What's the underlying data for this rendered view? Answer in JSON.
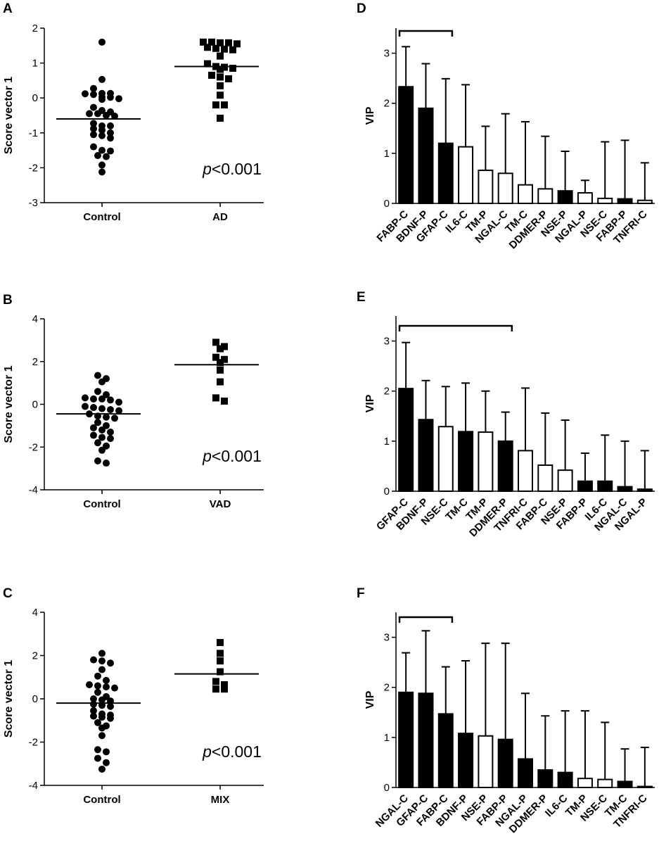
{
  "chart_data": [
    {
      "panel": "A",
      "type": "scatter",
      "ylabel": "Score vector 1",
      "ylim": [
        -3,
        2
      ],
      "yticks": [
        -3,
        -2,
        -1,
        0,
        1,
        2
      ],
      "categories": [
        "Control",
        "AD"
      ],
      "p_prefix": "p",
      "p_text": "<0.001",
      "groups": [
        {
          "name": "Control",
          "marker": "circle",
          "mean": -0.6,
          "values": [
            1.6,
            0.53,
            0.27,
            0.13,
            0.1,
            0.12,
            0.13,
            0.03,
            0.02,
            -0.02,
            -0.04,
            -0.27,
            -0.36,
            -0.4,
            -0.45,
            -0.45,
            -0.5,
            -0.52,
            -0.73,
            -0.8,
            -0.8,
            -0.88,
            -0.92,
            -1.0,
            -1.05,
            -1.08,
            -1.15,
            -1.4,
            -1.5,
            -1.52,
            -1.65,
            -1.68,
            -1.92,
            -2.12
          ]
        },
        {
          "name": "AD",
          "marker": "square",
          "mean": 0.9,
          "values": [
            1.6,
            1.6,
            1.58,
            1.55,
            1.58,
            1.45,
            1.42,
            1.4,
            1.38,
            1.2,
            0.98,
            0.9,
            0.88,
            0.85,
            0.82,
            0.65,
            0.6,
            0.55,
            0.35,
            0.08,
            -0.2,
            -0.2,
            -0.58
          ]
        }
      ]
    },
    {
      "panel": "B",
      "type": "scatter",
      "ylabel": "Score vector 1",
      "ylim": [
        -4,
        4
      ],
      "yticks": [
        -4,
        -2,
        0,
        2,
        4
      ],
      "categories": [
        "Control",
        "VAD"
      ],
      "p_prefix": "p",
      "p_text": "<0.001",
      "groups": [
        {
          "name": "Control",
          "marker": "circle",
          "mean": -0.45,
          "values": [
            1.35,
            1.2,
            1.05,
            0.6,
            0.45,
            0.3,
            0.25,
            0.2,
            0.25,
            0.1,
            -0.1,
            -0.15,
            -0.2,
            -0.25,
            -0.3,
            -0.45,
            -0.55,
            -0.6,
            -0.65,
            -0.85,
            -1.0,
            -1.1,
            -1.2,
            -1.3,
            -1.45,
            -1.55,
            -1.6,
            -1.8,
            -1.95,
            -2.15,
            -2.65,
            -2.75
          ]
        },
        {
          "name": "VAD",
          "marker": "square",
          "mean": 1.85,
          "values": [
            2.9,
            2.6,
            2.7,
            2.2,
            2.1,
            1.95,
            1.6,
            1.05,
            0.3,
            0.15
          ]
        }
      ]
    },
    {
      "panel": "C",
      "type": "scatter",
      "ylabel": "Score vector 1",
      "ylim": [
        -4,
        4
      ],
      "yticks": [
        -4,
        -2,
        0,
        2,
        4
      ],
      "categories": [
        "Control",
        "MIX"
      ],
      "p_prefix": "p",
      "p_text": "<0.001",
      "groups": [
        {
          "name": "Control",
          "marker": "circle",
          "mean": -0.2,
          "values": [
            2.1,
            1.8,
            1.75,
            1.65,
            1.35,
            1.05,
            0.85,
            0.65,
            0.6,
            0.55,
            0.5,
            0.3,
            0.1,
            0.0,
            -0.05,
            -0.1,
            -0.25,
            -0.3,
            -0.35,
            -0.55,
            -0.7,
            -0.75,
            -0.8,
            -0.85,
            -0.9,
            -1.1,
            -1.25,
            -1.35,
            -1.7,
            -2.35,
            -2.45,
            -2.75,
            -2.95,
            -3.25
          ]
        },
        {
          "name": "MIX",
          "marker": "square",
          "mean": 1.15,
          "values": [
            2.6,
            2.1,
            1.75,
            1.25,
            0.8,
            0.65,
            0.45,
            0.45
          ]
        }
      ]
    },
    {
      "panel": "D",
      "type": "bar",
      "ylabel": "VIP",
      "ylim": [
        0,
        3.5
      ],
      "yticks": [
        0,
        1,
        2,
        3
      ],
      "categories": [
        "FABP-C",
        "BDNF-P",
        "GFAP-C",
        "IL6-C",
        "TM-P",
        "NGAL-C",
        "TM-C",
        "DDMER-P",
        "NSE-P",
        "NGAL-P",
        "NSE-C",
        "FABP-P",
        "TNFRI-C"
      ],
      "values": [
        2.33,
        1.9,
        1.2,
        1.13,
        0.66,
        0.6,
        0.37,
        0.29,
        0.25,
        0.21,
        0.1,
        0.09,
        0.06
      ],
      "error_upper": [
        3.13,
        2.79,
        2.49,
        2.37,
        1.54,
        1.79,
        1.63,
        1.34,
        1.04,
        0.46,
        1.23,
        1.26,
        0.81
      ],
      "filled": [
        true,
        true,
        true,
        false,
        false,
        false,
        false,
        false,
        true,
        false,
        false,
        true,
        false
      ],
      "bracket_span": [
        0,
        2
      ]
    },
    {
      "panel": "E",
      "type": "bar",
      "ylabel": "VIP",
      "ylim": [
        0,
        3.5
      ],
      "yticks": [
        0,
        1,
        2,
        3
      ],
      "categories": [
        "GFAP-C",
        "BDNF-P",
        "NSE-C",
        "TM-C",
        "TM-P",
        "DDMER-P",
        "TNFRI-C",
        "FABP-C",
        "NSE-P",
        "FABP-P",
        "IL6-C",
        "NGAL-C",
        "NGAL-P"
      ],
      "values": [
        2.05,
        1.43,
        1.29,
        1.19,
        1.18,
        1.0,
        0.81,
        0.52,
        0.42,
        0.2,
        0.2,
        0.09,
        0.04
      ],
      "error_upper": [
        2.97,
        2.21,
        2.09,
        2.16,
        2.0,
        1.58,
        2.06,
        1.56,
        1.42,
        0.76,
        1.12,
        1.0,
        0.81
      ],
      "filled": [
        true,
        true,
        false,
        true,
        false,
        true,
        false,
        false,
        false,
        true,
        true,
        true,
        true
      ],
      "bracket_span": [
        0,
        5
      ]
    },
    {
      "panel": "F",
      "type": "bar",
      "ylabel": "VIP",
      "ylim": [
        0,
        3.5
      ],
      "yticks": [
        0,
        1,
        2,
        3
      ],
      "categories": [
        "NGAL-C",
        "GFAP-C",
        "FABP-C",
        "BDNF-P",
        "NSE-P",
        "FABP-P",
        "NGAL-P",
        "DDMER-P",
        "IL6-C",
        "TM-P",
        "NSE-C",
        "TM-C",
        "TNFRI-C"
      ],
      "values": [
        1.9,
        1.88,
        1.47,
        1.08,
        1.03,
        0.96,
        0.57,
        0.35,
        0.3,
        0.18,
        0.16,
        0.12,
        0.02
      ],
      "error_upper": [
        2.69,
        3.13,
        2.41,
        2.53,
        2.88,
        2.88,
        1.88,
        1.43,
        1.53,
        1.53,
        1.3,
        0.77,
        0.8
      ],
      "filled": [
        true,
        true,
        true,
        true,
        false,
        true,
        true,
        true,
        true,
        false,
        false,
        true,
        false
      ],
      "bracket_span": [
        0,
        2
      ]
    }
  ]
}
